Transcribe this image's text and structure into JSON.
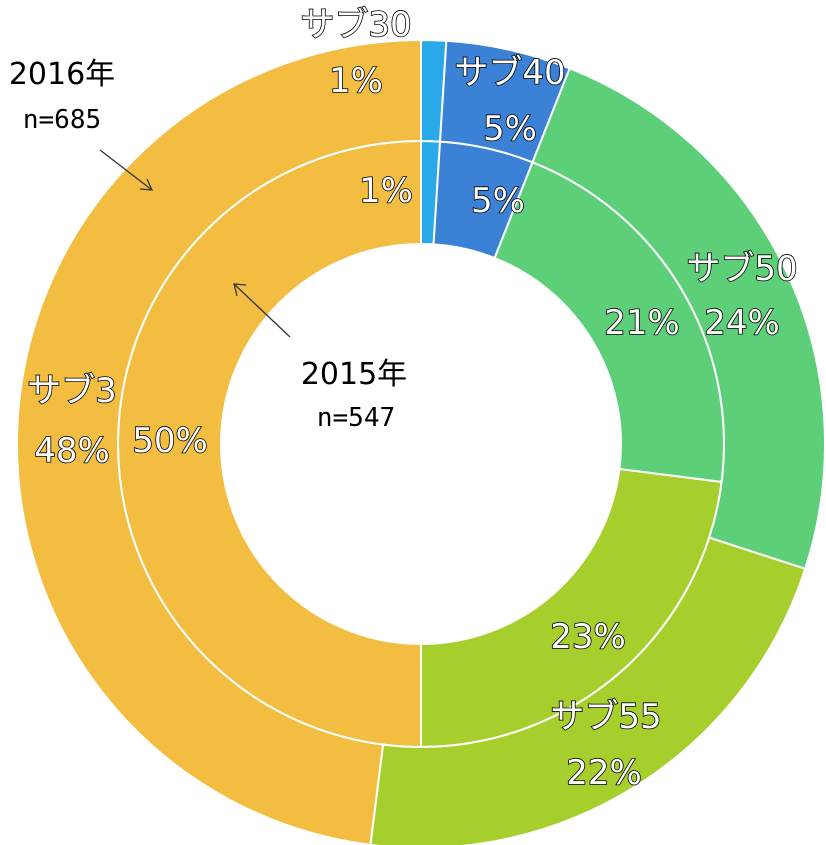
{
  "chart_data": {
    "type": "pie",
    "subtype": "nested-donut",
    "categories": [
      "サブ30",
      "サブ40",
      "サブ50",
      "サブ55",
      "サブ3"
    ],
    "colors": [
      "#2aa9e9",
      "#3b82d6",
      "#5ccf78",
      "#a6cf2e",
      "#f2bd40"
    ],
    "series": [
      {
        "name": "2015年",
        "n_label": "n=547",
        "ring": "inner",
        "values": [
          1,
          5,
          21,
          23,
          50
        ],
        "value_labels": [
          "1%",
          "5%",
          "21%",
          "23%",
          "50%"
        ]
      },
      {
        "name": "2016年",
        "n_label": "n=685",
        "ring": "outer",
        "values": [
          1,
          5,
          24,
          22,
          48
        ],
        "value_labels": [
          "1%",
          "5%",
          "24%",
          "22%",
          "48%"
        ]
      }
    ],
    "title": "",
    "legend": "none"
  }
}
